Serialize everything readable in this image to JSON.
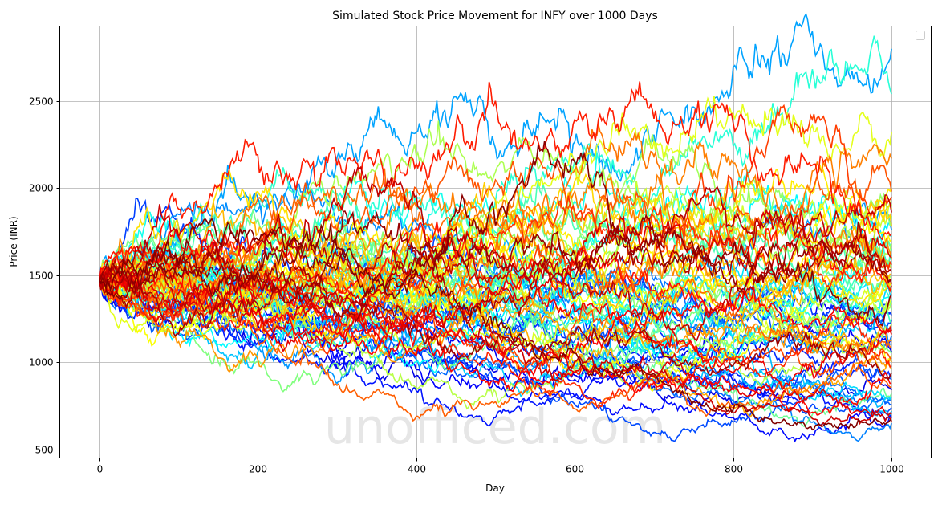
{
  "chart_data": {
    "type": "line",
    "title": "Simulated Stock Price Movement for INFY over 1000 Days",
    "xlabel": "Day",
    "ylabel": "Price (INR)",
    "xlim": [
      -50,
      1050
    ],
    "ylim": [
      450,
      2930
    ],
    "xticks": [
      0,
      200,
      400,
      600,
      800,
      1000
    ],
    "yticks": [
      500,
      1000,
      1500,
      2000,
      2500
    ],
    "grid": true,
    "legend": "top-right (empty)",
    "colormap": "jet",
    "start_price": 1470,
    "days": 1000,
    "final_prices": [
      2800,
      2540,
      2320,
      2170,
      2000,
      1980,
      1950,
      1900,
      1880,
      1860,
      1840,
      1800,
      1780,
      1760,
      1740,
      1720,
      1700,
      1680,
      1660,
      1650,
      1640,
      1620,
      1600,
      1590,
      1580,
      1560,
      1550,
      1540,
      1520,
      1500,
      1490,
      1480,
      1470,
      1460,
      1450,
      1440,
      1420,
      1400,
      1390,
      1380,
      1360,
      1350,
      1330,
      1320,
      1300,
      1280,
      1270,
      1250,
      1240,
      1220,
      1200,
      1180,
      1160,
      1150,
      1130,
      1120,
      1100,
      1080,
      1060,
      1050,
      1040,
      1020,
      1000,
      980,
      960,
      940,
      920,
      900,
      880,
      860,
      840,
      820,
      800,
      790,
      780,
      760,
      740,
      720,
      700,
      690,
      680,
      670,
      660,
      650
    ],
    "watermark": "unofficed.com"
  }
}
